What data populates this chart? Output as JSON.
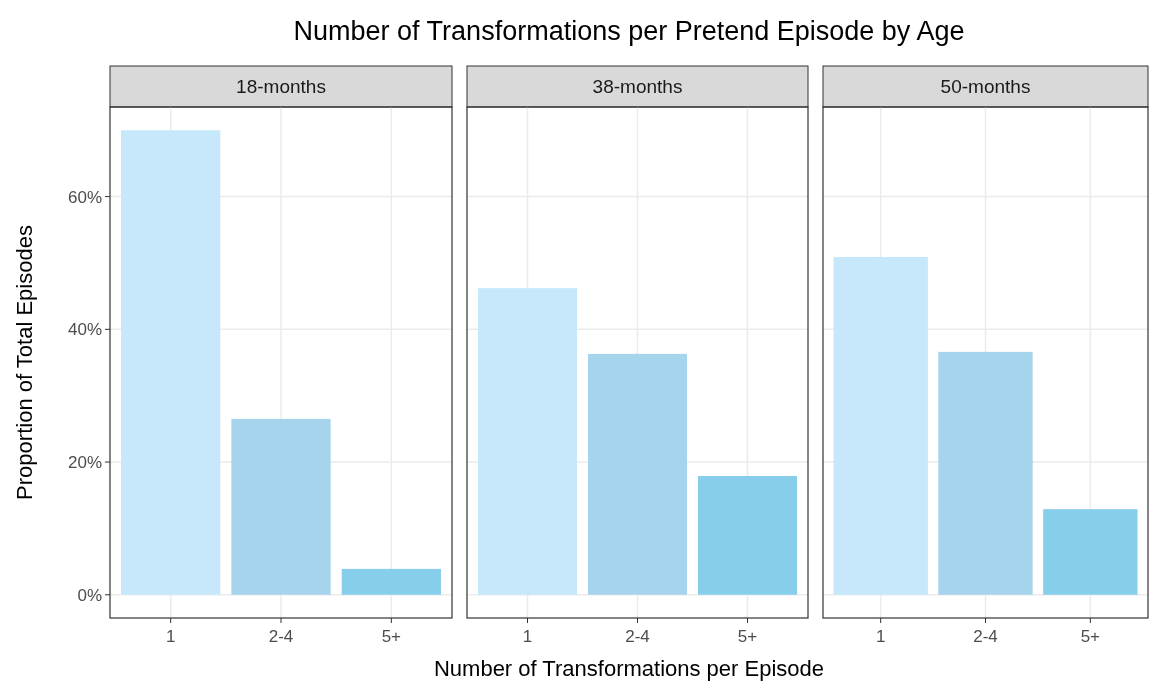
{
  "chart_data": [
    {
      "type": "bar",
      "title": "Number of Transformations per Pretend Episode by Age",
      "subtitle": "18-months",
      "ylabel": "Proportion of Total Episodes",
      "categories": [
        "1",
        "2-4",
        "5+"
      ],
      "values": [
        70.0,
        26.5,
        3.9
      ],
      "colors": [
        "#c6e8fa",
        "#a6d4ec",
        "#87ceeb"
      ],
      "ylim": [
        -3.5,
        73.5
      ],
      "yticks": [
        {
          "value": 0,
          "label": "0%"
        },
        {
          "value": 20,
          "label": "20%"
        },
        {
          "value": 40,
          "label": "40%"
        },
        {
          "value": 60,
          "label": "60%"
        }
      ],
      "grid": true
    },
    {
      "type": "bar",
      "subtitle": "38-months",
      "xlabel": "Number of Transformations per Episode",
      "categories": [
        "1",
        "2-4",
        "5+"
      ],
      "values": [
        46.2,
        36.3,
        17.9
      ],
      "colors": [
        "#c6e8fa",
        "#a6d4ec",
        "#87ceeb"
      ],
      "ylim": [
        -3.5,
        73.5
      ],
      "yticks": [
        {
          "value": 0,
          "label": null
        },
        {
          "value": 20,
          "label": null
        },
        {
          "value": 40,
          "label": null
        },
        {
          "value": 60,
          "label": null
        }
      ],
      "grid": true,
      "tick_labels": "x"
    },
    {
      "type": "bar",
      "subtitle": "50-months",
      "categories": [
        "1",
        "2-4",
        "5+"
      ],
      "values": [
        50.9,
        36.6,
        12.9
      ],
      "colors": [
        "#c6e8fa",
        "#a6d4ec",
        "#87ceeb"
      ],
      "ylim": [
        -3.5,
        73.5
      ],
      "yticks": [
        {
          "value": 0,
          "label": null
        },
        {
          "value": 20,
          "label": null
        },
        {
          "value": 40,
          "label": null
        },
        {
          "value": 60,
          "label": null
        }
      ],
      "grid": true,
      "tick_labels": "x"
    }
  ]
}
